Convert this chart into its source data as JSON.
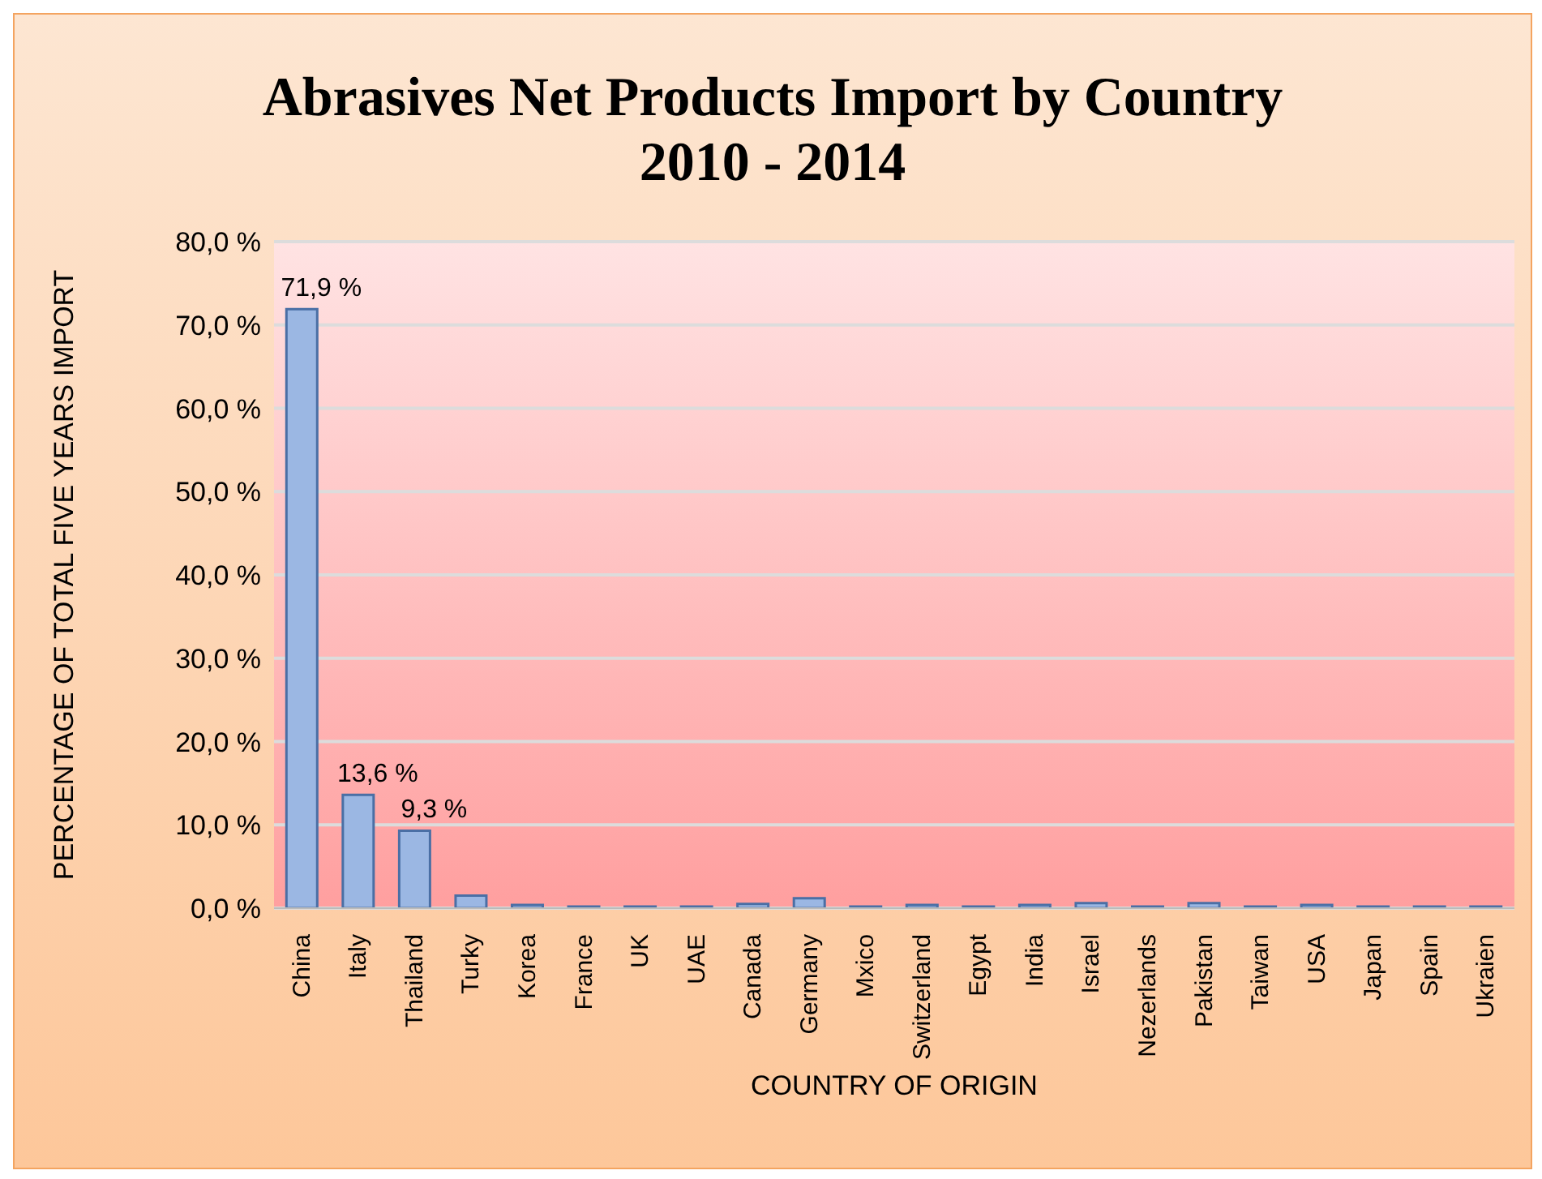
{
  "chart_data": {
    "type": "bar",
    "title": "Abrasives Net Products Import by Country\n2010 - 2014",
    "xlabel": "COUNTRY OF ORIGIN",
    "ylabel": "PERCENTAGE OF TOTAL FIVE YEARS IMPORT",
    "categories": [
      "China",
      "Italy",
      "Thailand",
      "Turky",
      "Korea",
      "France",
      "UK",
      "UAE",
      "Canada",
      "Germany",
      "Mxico",
      "Switzerland",
      "Egypt",
      "India",
      "Israel",
      "Nezerlands",
      "Pakistan",
      "Taiwan",
      "USA",
      "Japan",
      "Spain",
      "Ukraien"
    ],
    "values": [
      71.9,
      13.6,
      9.3,
      1.5,
      0.4,
      0.2,
      0.2,
      0.2,
      0.5,
      1.2,
      0.2,
      0.4,
      0.2,
      0.4,
      0.6,
      0.2,
      0.6,
      0.2,
      0.4,
      0.2,
      0.2,
      0.2
    ],
    "value_labels": [
      "71,9 %",
      "13,6 %",
      "9,3 %",
      null,
      null,
      null,
      null,
      null,
      null,
      null,
      null,
      null,
      null,
      null,
      null,
      null,
      null,
      null,
      null,
      null,
      null,
      null
    ],
    "color": "#9bb7e3",
    "ylim": [
      0,
      80
    ],
    "yticks": [
      {
        "value": 0,
        "label": "0,0 %"
      },
      {
        "value": 10,
        "label": "10,0 %"
      },
      {
        "value": 20,
        "label": "20,0 %"
      },
      {
        "value": 30,
        "label": "30,0 %"
      },
      {
        "value": 40,
        "label": "40,0 %"
      },
      {
        "value": 50,
        "label": "50,0 %"
      },
      {
        "value": 60,
        "label": "60,0 %"
      },
      {
        "value": 70,
        "label": "70,0 %"
      },
      {
        "value": 80,
        "label": "80,0 %"
      }
    ],
    "grid": "y"
  }
}
